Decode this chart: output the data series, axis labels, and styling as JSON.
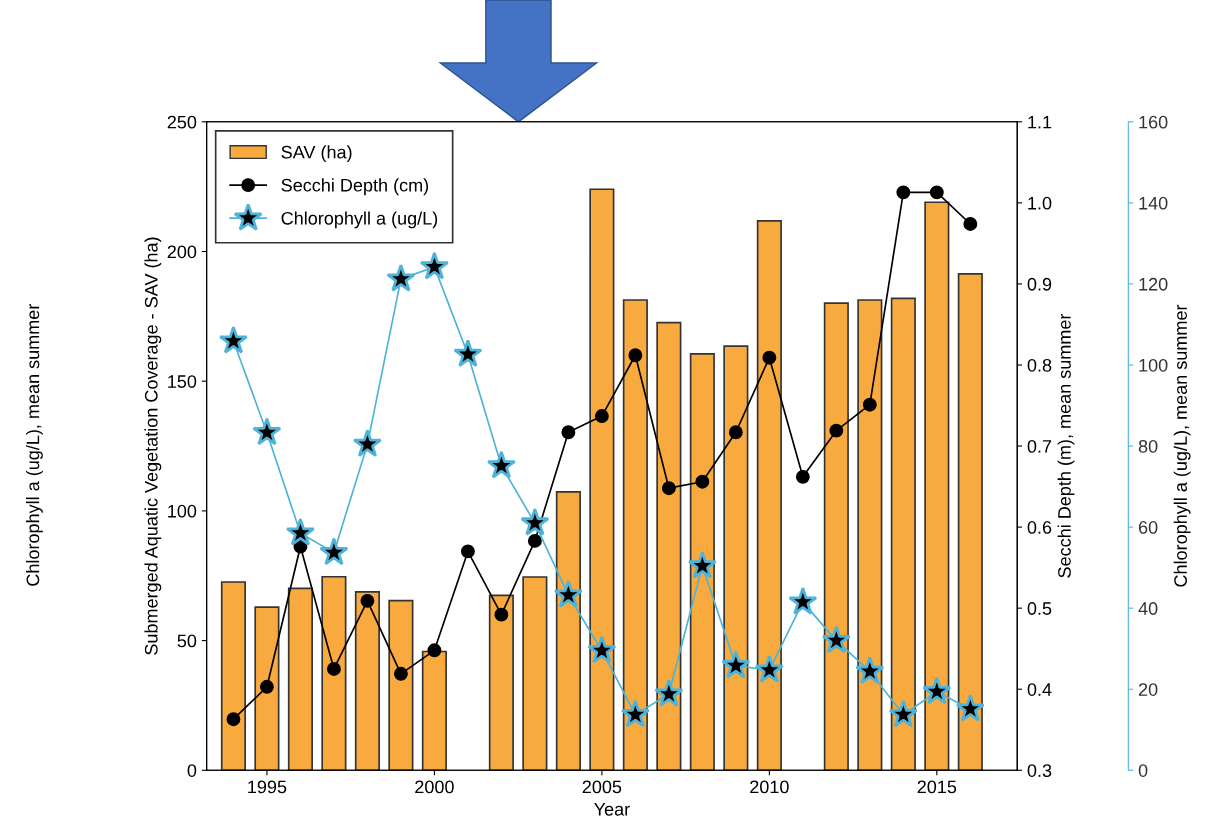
{
  "chart_data": {
    "type": "bar",
    "xlabel": "Year",
    "ylabel": "Submerged Aquatic Vegetation Coverage - SAV (ha)",
    "y2label": "Secchi Depth (m), mean summer",
    "y3label": "Chlorophyll a (ug/L), mean summer",
    "x": [
      1994,
      1995,
      1996,
      1997,
      1998,
      1999,
      2000,
      2001,
      2002,
      2003,
      2004,
      2005,
      2006,
      2007,
      2008,
      2009,
      2010,
      2011,
      2012,
      2013,
      2014,
      2015,
      2016
    ],
    "series": [
      {
        "name": "SAV (ha)",
        "color": "#f9aa3f",
        "values": [
          72.6,
          62.9,
          70.1,
          74.6,
          68.8,
          65.4,
          45.8,
          null,
          67.4,
          74.5,
          107.3,
          224,
          181.3,
          172.6,
          160.5,
          163.5,
          211.8,
          null,
          180.1,
          181.3,
          181.9,
          219,
          191.4
        ]
      },
      {
        "name": "Secchi Depth (cm)",
        "type": "line",
        "axis": "y2",
        "marker": "circle",
        "color": "#000000",
        "values": [
          0.363,
          0.403,
          0.576,
          0.425,
          0.509,
          0.419,
          0.448,
          0.57,
          0.492,
          0.583,
          0.717,
          0.737,
          0.812,
          0.648,
          0.656,
          0.717,
          0.809,
          0.662,
          0.719,
          0.751,
          1.013,
          1.013,
          0.974
        ]
      },
      {
        "name": "Chlorophyll a (ug/L)",
        "type": "line",
        "axis": "y3",
        "marker": "star",
        "color": "#4fb3d9",
        "values": [
          105.9,
          83.3,
          58.5,
          53.7,
          80.4,
          121.2,
          124.2,
          102.6,
          75.1,
          61,
          43.2,
          29.5,
          13.7,
          18.8,
          50.4,
          25.8,
          24.7,
          41.5,
          32,
          24.4,
          13.7,
          19.4,
          15.1
        ]
      }
    ],
    "xlim": [
      1993.2,
      2017.4
    ],
    "xticks": [
      1995,
      2000,
      2005,
      2010,
      2015
    ],
    "ylim": [
      0,
      250
    ],
    "yticks": [
      0,
      50,
      100,
      150,
      200,
      250
    ],
    "y2lim": [
      0.3,
      1.1
    ],
    "y2ticks": [
      0.3,
      0.4,
      0.5,
      0.6,
      0.7,
      0.8,
      0.9,
      {
        "value": 1.0,
        "label": "1.0"
      },
      1.1
    ],
    "y3lim": [
      0,
      160
    ],
    "y3ticks": [
      0,
      20,
      40,
      60,
      80,
      100,
      120,
      140,
      160
    ],
    "annotations": [
      "Chlorophyll a (ug/L), mean summer"
    ],
    "legend": "top left",
    "grid": false
  }
}
